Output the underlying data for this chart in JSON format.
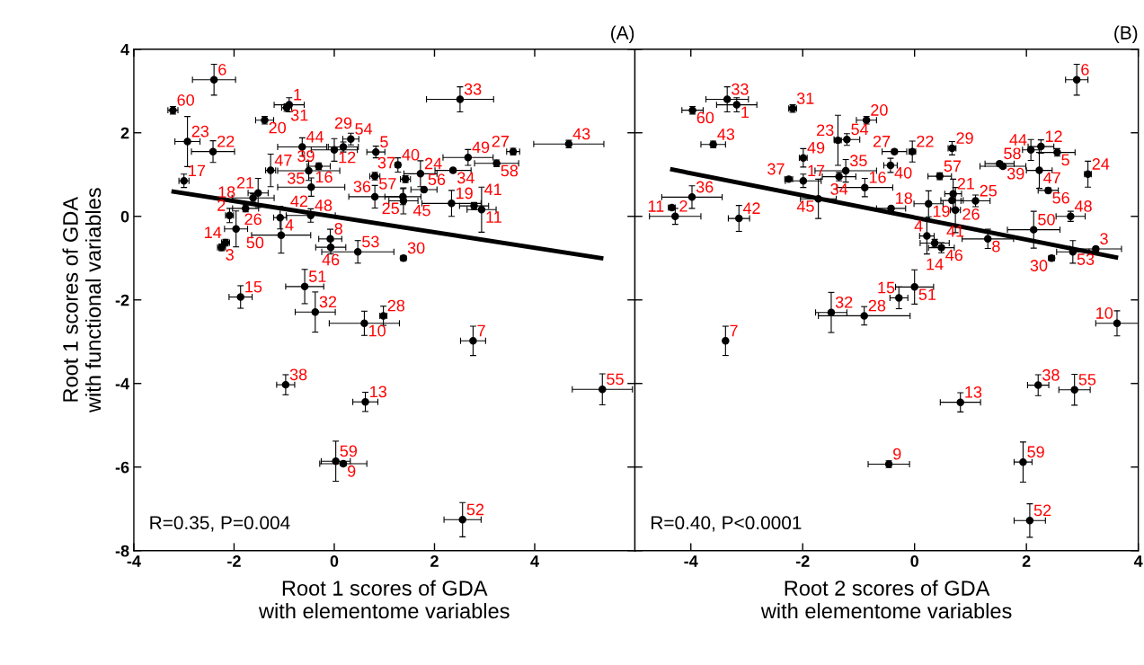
{
  "chart_data": [
    {
      "type": "scatter",
      "title": "(A)",
      "xlabel": "Root 1 scores of GDA\nwith elementome variables",
      "ylabel": "Root 1 scores of GDA\nwith functional variables",
      "xlim": [
        -4,
        6
      ],
      "xticks": [
        -4,
        -2,
        0,
        2,
        4
      ],
      "ylim": [
        -8,
        4
      ],
      "yticks": [
        -8,
        -6,
        -4,
        -2,
        0,
        2,
        4
      ],
      "series": [
        {
          "color": "#000000",
          "marker": "circle",
          "x": [
            -2.4,
            -3.22,
            -0.9,
            -0.95,
            -1.39,
            2.51,
            -2.93,
            -2.42,
            -3.0,
            4.68,
            3.57,
            2.67,
            3.24,
            0.33,
            0.83,
            -0.64,
            0.18,
            0.0,
            -0.31,
            -0.51,
            -0.46,
            -1.27,
            -1.52,
            -1.62,
            -1.77,
            -2.09,
            -1.96,
            -2.17,
            -2.25,
            -1.08,
            -1.06,
            -0.47,
            -0.08,
            -0.07,
            0.47,
            1.38,
            0.81,
            0.81,
            1.27,
            1.72,
            2.37,
            1.42,
            1.37,
            1.38,
            1.79,
            2.34,
            2.79,
            2.94,
            -1.87,
            -0.59,
            -0.38,
            0.6,
            0.98,
            2.77,
            -0.97,
            0.62,
            5.35,
            0.03,
            0.18,
            2.56
          ],
          "values": [
            3.27,
            2.54,
            2.67,
            2.6,
            2.3,
            2.8,
            1.79,
            1.55,
            0.85,
            1.73,
            1.55,
            1.41,
            1.27,
            1.85,
            1.54,
            1.66,
            1.66,
            1.59,
            1.2,
            1.09,
            0.7,
            1.1,
            0.56,
            0.44,
            0.19,
            0.02,
            -0.3,
            -0.63,
            -0.74,
            -0.03,
            -0.45,
            0.02,
            -0.54,
            -0.74,
            -0.85,
            -1.0,
            0.96,
            0.47,
            1.23,
            1.02,
            1.1,
            0.89,
            0.47,
            0.37,
            0.64,
            0.31,
            0.25,
            0.16,
            -1.93,
            -1.68,
            -2.29,
            -2.56,
            -2.38,
            -2.98,
            -4.03,
            -4.44,
            -4.14,
            -5.86,
            -5.92,
            -7.26
          ],
          "xerrors": [
            0.43,
            0.1,
            0.3,
            0.1,
            0.18,
            0.67,
            0.25,
            0.43,
            0.1,
            0.7,
            0.13,
            0.5,
            0.44,
            0.16,
            0.18,
            0.49,
            0.3,
            0.46,
            0.23,
            0.62,
            0.67,
            0.1,
            0.2,
            0.42,
            0.26,
            0.08,
            0.23,
            0.08,
            0.08,
            0.13,
            0.59,
            0.49,
            0.23,
            0.3,
            0.72,
            0.05,
            0.1,
            0.52,
            0.05,
            0.33,
            0.36,
            0.1,
            0.36,
            0.29,
            0.26,
            0.59,
            0.29,
            0.29,
            0.23,
            0.38,
            0.4,
            0.7,
            0.07,
            0.25,
            0.18,
            0.25,
            0.6,
            0.29,
            0.47,
            0.37
          ],
          "errors": [
            0.37,
            0.09,
            0.17,
            0.09,
            0.09,
            0.3,
            0.6,
            0.26,
            0.16,
            0.09,
            0.08,
            0.19,
            0.08,
            0.14,
            0.14,
            0.22,
            0.12,
            0.27,
            0.08,
            0.23,
            0.22,
            0.39,
            0.35,
            0.1,
            0.08,
            0.17,
            0.43,
            0.08,
            0.08,
            0.27,
            0.43,
            0.16,
            0.23,
            0.16,
            0.27,
            0.05,
            0.09,
            0.27,
            0.17,
            0.31,
            0.05,
            0.08,
            0.19,
            0.31,
            0.06,
            0.31,
            0.08,
            0.54,
            0.27,
            0.41,
            0.48,
            0.29,
            0.23,
            0.35,
            0.24,
            0.23,
            0.37,
            0.48,
            0.05,
            0.41
          ]
        },
        {
          "type": "line",
          "color": "#000000",
          "line_style": "solid",
          "x": [
            -3.25,
            5.37
          ],
          "values": [
            0.6,
            -1.01
          ]
        }
      ],
      "annotations": [
        {
          "text": "6",
          "x": -2.4,
          "y": 3.27
        },
        {
          "text": "60",
          "x": -3.22,
          "y": 2.54
        },
        {
          "text": "1",
          "x": -0.9,
          "y": 2.67
        },
        {
          "text": "31",
          "x": -0.95,
          "y": 2.6
        },
        {
          "text": "20",
          "x": -1.39,
          "y": 2.3
        },
        {
          "text": "33",
          "x": 2.51,
          "y": 2.8
        },
        {
          "text": "23",
          "x": -2.93,
          "y": 1.79
        },
        {
          "text": "22",
          "x": -2.42,
          "y": 1.55
        },
        {
          "text": "17",
          "x": -3.0,
          "y": 0.85
        },
        {
          "text": "43",
          "x": 4.68,
          "y": 1.73
        },
        {
          "text": "27",
          "x": 3.57,
          "y": 1.55
        },
        {
          "text": "49",
          "x": 2.67,
          "y": 1.41
        },
        {
          "text": "58",
          "x": 3.24,
          "y": 1.27
        },
        {
          "text": "54",
          "x": 0.33,
          "y": 1.85
        },
        {
          "text": "5",
          "x": 0.83,
          "y": 1.54
        },
        {
          "text": "44",
          "x": -0.64,
          "y": 1.66
        },
        {
          "text": "29",
          "x": 0.18,
          "y": 1.66
        },
        {
          "text": "12",
          "x": 0.0,
          "y": 1.59
        },
        {
          "text": "39",
          "x": -0.31,
          "y": 1.2
        },
        {
          "text": "35",
          "x": -0.51,
          "y": 1.09
        },
        {
          "text": "16",
          "x": -0.46,
          "y": 0.7
        },
        {
          "text": "47",
          "x": -1.27,
          "y": 1.1
        },
        {
          "text": "21",
          "x": -1.52,
          "y": 0.56
        },
        {
          "text": "26",
          "x": -1.62,
          "y": 0.44
        },
        {
          "text": "18",
          "x": -1.77,
          "y": 0.19
        },
        {
          "text": "2",
          "x": -2.09,
          "y": 0.02
        },
        {
          "text": "50",
          "x": -1.96,
          "y": -0.3
        },
        {
          "text": "14",
          "x": -2.17,
          "y": -0.63
        },
        {
          "text": "3",
          "x": -2.25,
          "y": -0.74
        },
        {
          "text": "42",
          "x": -1.08,
          "y": -0.03
        },
        {
          "text": "4",
          "x": -1.06,
          "y": -0.45
        },
        {
          "text": "48",
          "x": -0.47,
          "y": 0.02
        },
        {
          "text": "8",
          "x": -0.08,
          "y": -0.54
        },
        {
          "text": "46",
          "x": -0.07,
          "y": -0.74
        },
        {
          "text": "53",
          "x": 0.47,
          "y": -0.85
        },
        {
          "text": "30",
          "x": 1.38,
          "y": -1.0
        },
        {
          "text": "57",
          "x": 0.81,
          "y": 0.96
        },
        {
          "text": "36",
          "x": 0.81,
          "y": 0.47
        },
        {
          "text": "40",
          "x": 1.27,
          "y": 1.23
        },
        {
          "text": "24",
          "x": 1.72,
          "y": 1.02
        },
        {
          "text": "34",
          "x": 2.37,
          "y": 1.1
        },
        {
          "text": "37",
          "x": 1.42,
          "y": 0.89
        },
        {
          "text": "45",
          "x": 1.37,
          "y": 0.47
        },
        {
          "text": "25",
          "x": 1.38,
          "y": 0.37
        },
        {
          "text": "56",
          "x": 1.79,
          "y": 0.64
        },
        {
          "text": "19",
          "x": 2.34,
          "y": 0.31
        },
        {
          "text": "41",
          "x": 2.79,
          "y": 0.25
        },
        {
          "text": "11",
          "x": 2.94,
          "y": 0.16
        },
        {
          "text": "15",
          "x": -1.87,
          "y": -1.93
        },
        {
          "text": "51",
          "x": -0.59,
          "y": -1.68
        },
        {
          "text": "32",
          "x": -0.38,
          "y": -2.29
        },
        {
          "text": "10",
          "x": 0.6,
          "y": -2.56
        },
        {
          "text": "28",
          "x": 0.98,
          "y": -2.38
        },
        {
          "text": "7",
          "x": 2.77,
          "y": -2.98
        },
        {
          "text": "38",
          "x": -0.97,
          "y": -4.03
        },
        {
          "text": "13",
          "x": 0.62,
          "y": -4.44
        },
        {
          "text": "55",
          "x": 5.35,
          "y": -4.14
        },
        {
          "text": "59",
          "x": 0.03,
          "y": -5.86
        },
        {
          "text": "9",
          "x": 0.18,
          "y": -5.92
        },
        {
          "text": "52",
          "x": 2.56,
          "y": -7.26
        },
        "R=0.35, P=0.004"
      ]
    },
    {
      "type": "scatter",
      "title": "(B)",
      "xlabel": "Root 2 scores of GDA\nwith elementome variables",
      "tick_labels": "x",
      "xlim": [
        -5,
        4
      ],
      "xticks": [
        -4,
        -2,
        0,
        2,
        4
      ],
      "ylim": [
        -8,
        4
      ],
      "yticks": [
        -8,
        -6,
        -4,
        -2,
        0,
        2,
        4
      ],
      "series": [
        {
          "color": "#000000",
          "marker": "circle",
          "x": [
            2.9,
            -3.97,
            -3.35,
            -3.18,
            -2.18,
            -3.6,
            -0.86,
            -1.37,
            -1.21,
            -1.99,
            -0.36,
            -0.04,
            0.67,
            -0.43,
            -1.23,
            -2.25,
            -1.35,
            -1.99,
            -1.72,
            -0.89,
            -3.98,
            -4.34,
            -4.28,
            -3.14,
            -0.42,
            0.45,
            0.25,
            0.69,
            0.67,
            0.73,
            1.09,
            1.52,
            1.58,
            2.08,
            2.26,
            2.55,
            2.23,
            2.39,
            3.1,
            2.79,
            2.13,
            3.24,
            2.83,
            2.45,
            1.31,
            0.22,
            0.36,
            0.48,
            0.0,
            -0.28,
            -1.49,
            -0.9,
            -3.38,
            3.62,
            2.21,
            2.86,
            0.82,
            -0.46,
            1.94,
            2.06
          ],
          "values": [
            3.27,
            2.54,
            2.8,
            2.67,
            2.58,
            1.72,
            2.3,
            1.82,
            1.84,
            1.4,
            1.55,
            1.55,
            1.63,
            1.22,
            1.09,
            0.89,
            0.95,
            0.85,
            0.42,
            0.69,
            0.46,
            0.21,
            0.0,
            -0.05,
            0.19,
            0.96,
            0.3,
            0.54,
            0.38,
            0.15,
            0.37,
            1.26,
            1.2,
            1.59,
            1.67,
            1.53,
            1.1,
            0.62,
            1.01,
            0.0,
            -0.32,
            -0.78,
            -0.85,
            -1.0,
            -0.54,
            -0.47,
            -0.64,
            -0.75,
            -1.69,
            -1.95,
            -2.3,
            -2.38,
            -2.98,
            -2.56,
            -4.04,
            -4.15,
            -4.45,
            -5.93,
            -5.88,
            -7.28
          ],
          "xerrors": [
            0.2,
            0.19,
            0.38,
            0.36,
            0.07,
            0.22,
            0.18,
            0.06,
            0.23,
            0.07,
            0.22,
            0.06,
            0.07,
            0.12,
            0.55,
            0.07,
            0.3,
            0.32,
            0.32,
            0.5,
            0.54,
            0.06,
            0.46,
            0.19,
            0.26,
            0.21,
            0.26,
            0.15,
            0.2,
            0.09,
            0.26,
            0.26,
            0.41,
            0.15,
            0.23,
            0.32,
            0.23,
            0.18,
            0.06,
            0.26,
            0.47,
            0.46,
            0.29,
            0.05,
            0.46,
            0.13,
            0.26,
            0.23,
            0.34,
            0.16,
            0.28,
            0.82,
            0.03,
            0.38,
            0.19,
            0.28,
            0.36,
            0.37,
            0.16,
            0.28
          ],
          "errors": [
            0.37,
            0.09,
            0.3,
            0.17,
            0.09,
            0.08,
            0.09,
            0.6,
            0.14,
            0.22,
            0.05,
            0.25,
            0.16,
            0.17,
            0.27,
            0.05,
            0.1,
            0.16,
            0.47,
            0.22,
            0.27,
            0.05,
            0.19,
            0.31,
            0.05,
            0.08,
            0.31,
            0.35,
            0.05,
            0.54,
            0.14,
            0.05,
            0.05,
            0.25,
            0.16,
            0.09,
            0.43,
            0.06,
            0.31,
            0.12,
            0.44,
            0.05,
            0.27,
            0.05,
            0.23,
            0.43,
            0.09,
            0.12,
            0.41,
            0.26,
            0.48,
            0.22,
            0.35,
            0.3,
            0.25,
            0.37,
            0.23,
            0.08,
            0.48,
            0.4
          ]
        },
        {
          "type": "line",
          "color": "#000000",
          "line_style": "solid",
          "x": [
            -4.37,
            3.64
          ],
          "values": [
            1.13,
            -0.99
          ]
        }
      ],
      "annotations": [
        {
          "text": "6",
          "x": 2.9,
          "y": 3.27
        },
        {
          "text": "60",
          "x": -3.97,
          "y": 2.54
        },
        {
          "text": "33",
          "x": -3.35,
          "y": 2.8
        },
        {
          "text": "1",
          "x": -3.18,
          "y": 2.67
        },
        {
          "text": "31",
          "x": -2.18,
          "y": 2.58
        },
        {
          "text": "43",
          "x": -3.6,
          "y": 1.72
        },
        {
          "text": "20",
          "x": -0.86,
          "y": 2.3
        },
        {
          "text": "23",
          "x": -1.37,
          "y": 1.82
        },
        {
          "text": "54",
          "x": -1.21,
          "y": 1.84
        },
        {
          "text": "49",
          "x": -1.99,
          "y": 1.4
        },
        {
          "text": "27",
          "x": -0.36,
          "y": 1.55
        },
        {
          "text": "22",
          "x": -0.04,
          "y": 1.55
        },
        {
          "text": "29",
          "x": 0.67,
          "y": 1.63
        },
        {
          "text": "40",
          "x": -0.43,
          "y": 1.22
        },
        {
          "text": "35",
          "x": -1.23,
          "y": 1.09
        },
        {
          "text": "37",
          "x": -2.25,
          "y": 0.89
        },
        {
          "text": "34",
          "x": -1.35,
          "y": 0.95
        },
        {
          "text": "17",
          "x": -1.99,
          "y": 0.85
        },
        {
          "text": "45",
          "x": -1.72,
          "y": 0.42
        },
        {
          "text": "16",
          "x": -0.89,
          "y": 0.69
        },
        {
          "text": "36",
          "x": -3.98,
          "y": 0.46
        },
        {
          "text": "11",
          "x": -4.34,
          "y": 0.21
        },
        {
          "text": "2",
          "x": -4.28,
          "y": 0.0
        },
        {
          "text": "42",
          "x": -3.14,
          "y": -0.05
        },
        {
          "text": "18",
          "x": -0.42,
          "y": 0.19
        },
        {
          "text": "57",
          "x": 0.45,
          "y": 0.96
        },
        {
          "text": "19",
          "x": 0.25,
          "y": 0.3
        },
        {
          "text": "21",
          "x": 0.69,
          "y": 0.54
        },
        {
          "text": "26",
          "x": 0.67,
          "y": 0.38
        },
        {
          "text": "41",
          "x": 0.73,
          "y": 0.15
        },
        {
          "text": "25",
          "x": 1.09,
          "y": 0.37
        },
        {
          "text": "58",
          "x": 1.52,
          "y": 1.26
        },
        {
          "text": "39",
          "x": 1.58,
          "y": 1.2
        },
        {
          "text": "44",
          "x": 2.08,
          "y": 1.59
        },
        {
          "text": "12",
          "x": 2.26,
          "y": 1.67
        },
        {
          "text": "5",
          "x": 2.55,
          "y": 1.53
        },
        {
          "text": "47",
          "x": 2.23,
          "y": 1.1
        },
        {
          "text": "56",
          "x": 2.39,
          "y": 0.62
        },
        {
          "text": "24",
          "x": 3.1,
          "y": 1.01
        },
        {
          "text": "48",
          "x": 2.79,
          "y": 0.0
        },
        {
          "text": "50",
          "x": 2.13,
          "y": -0.32
        },
        {
          "text": "3",
          "x": 3.24,
          "y": -0.78
        },
        {
          "text": "53",
          "x": 2.83,
          "y": -0.85
        },
        {
          "text": "30",
          "x": 2.45,
          "y": -1.0
        },
        {
          "text": "8",
          "x": 1.31,
          "y": -0.54
        },
        {
          "text": "4",
          "x": 0.22,
          "y": -0.47
        },
        {
          "text": "14",
          "x": 0.36,
          "y": -0.64
        },
        {
          "text": "46",
          "x": 0.48,
          "y": -0.75
        },
        {
          "text": "51",
          "x": 0.0,
          "y": -1.69
        },
        {
          "text": "15",
          "x": -0.28,
          "y": -1.95
        },
        {
          "text": "32",
          "x": -1.49,
          "y": -2.3
        },
        {
          "text": "28",
          "x": -0.9,
          "y": -2.38
        },
        {
          "text": "7",
          "x": -3.38,
          "y": -2.98
        },
        {
          "text": "10",
          "x": 3.62,
          "y": -2.56
        },
        {
          "text": "38",
          "x": 2.21,
          "y": -4.04
        },
        {
          "text": "55",
          "x": 2.86,
          "y": -4.15
        },
        {
          "text": "13",
          "x": 0.82,
          "y": -4.45
        },
        {
          "text": "9",
          "x": -0.46,
          "y": -5.93
        },
        {
          "text": "59",
          "x": 1.94,
          "y": -5.88
        },
        {
          "text": "52",
          "x": 2.06,
          "y": -7.28
        },
        "R=0.40, P<0.0001"
      ]
    }
  ]
}
